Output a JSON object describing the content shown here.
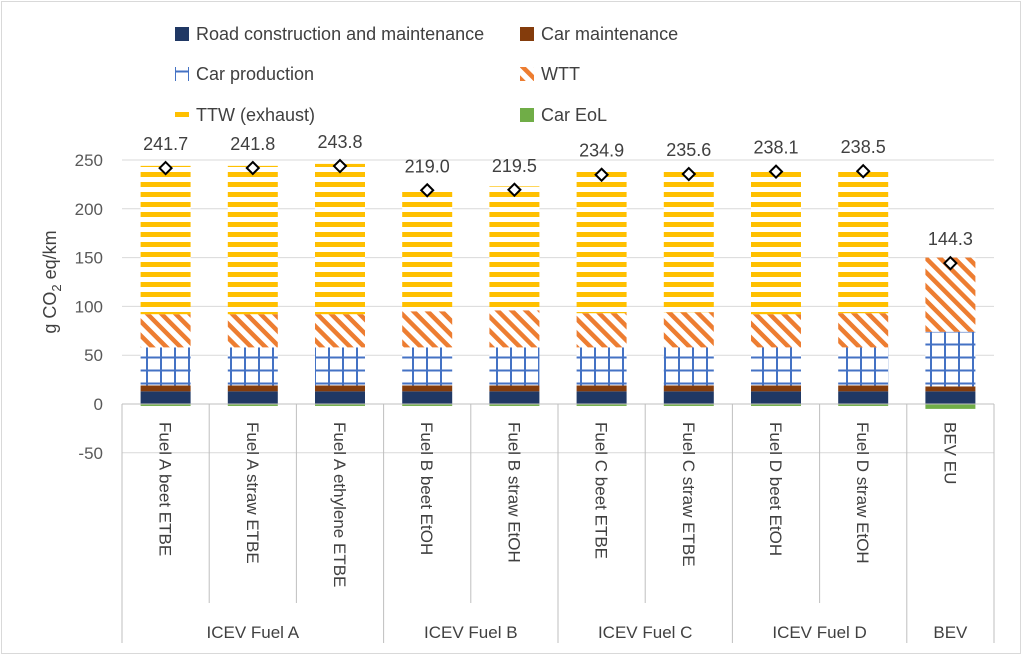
{
  "chart_data": {
    "type": "bar",
    "stacked": true,
    "ylabel": "g CO2 eq/km",
    "ylabel_parts": {
      "before": "g CO",
      "subscript": "2",
      "after": " eq/km"
    },
    "ylim": [
      -50,
      250
    ],
    "yticks": [
      "-50",
      "0",
      "50",
      "100",
      "150",
      "200",
      "250"
    ],
    "ytick_values": [
      -50,
      0,
      50,
      100,
      150,
      200,
      250
    ],
    "gridlines": true,
    "legend_position": "top",
    "categories": [
      "Fuel A beet ETBE",
      "Fuel A straw ETBE",
      "Fuel A ethylene ETBE",
      "Fuel B beet EtOH",
      "Fuel B straw EtOH",
      "Fuel C beet ETBE",
      "Fuel C straw ETBE",
      "Fuel D beet EtOH",
      "Fuel D straw EtOH",
      "BEV EU"
    ],
    "groups": [
      {
        "label": "ICEV Fuel A",
        "count": 3
      },
      {
        "label": "ICEV Fuel B",
        "count": 2
      },
      {
        "label": "ICEV Fuel C",
        "count": 2
      },
      {
        "label": "ICEV Fuel D",
        "count": 2
      },
      {
        "label": "BEV",
        "count": 1
      }
    ],
    "series": [
      {
        "name": "Road construction and maintenance",
        "color": "#203864",
        "pattern": "solid",
        "values": [
          13,
          13,
          13,
          13,
          13,
          13,
          13,
          13,
          13,
          13
        ]
      },
      {
        "name": "Car maintenance",
        "color": "#843c0c",
        "pattern": "solid",
        "values": [
          6,
          6,
          6,
          6,
          6,
          6,
          6,
          6,
          6,
          5
        ]
      },
      {
        "name": "Car production",
        "color": "#4472c4",
        "pattern": "grid",
        "values": [
          39,
          39,
          39,
          39,
          39,
          39,
          39,
          39,
          39,
          56
        ]
      },
      {
        "name": "WTT",
        "color": "#ed7d31",
        "pattern": "diagonal",
        "values": [
          34,
          34,
          34,
          37,
          38,
          35,
          36,
          34,
          35,
          76
        ]
      },
      {
        "name": "TTW (exhaust)",
        "color": "#ffc000",
        "pattern": "horizontal",
        "values": [
          152,
          152,
          154,
          127,
          127,
          145,
          145,
          149,
          149,
          0
        ]
      },
      {
        "name": "Car EoL",
        "color": "#70ad47",
        "pattern": "solid",
        "values": [
          -2,
          -2,
          -2,
          -2,
          -2,
          -2,
          -2,
          -2,
          -2,
          -5
        ]
      }
    ],
    "totals": [
      241.7,
      241.8,
      243.8,
      219.0,
      219.5,
      234.9,
      235.6,
      238.1,
      238.5,
      144.3
    ],
    "total_labels": [
      "241.7",
      "241.8",
      "243.8",
      "219.0",
      "219.5",
      "234.9",
      "235.6",
      "238.1",
      "238.5",
      "144.3"
    ],
    "total_marker": "diamond"
  }
}
